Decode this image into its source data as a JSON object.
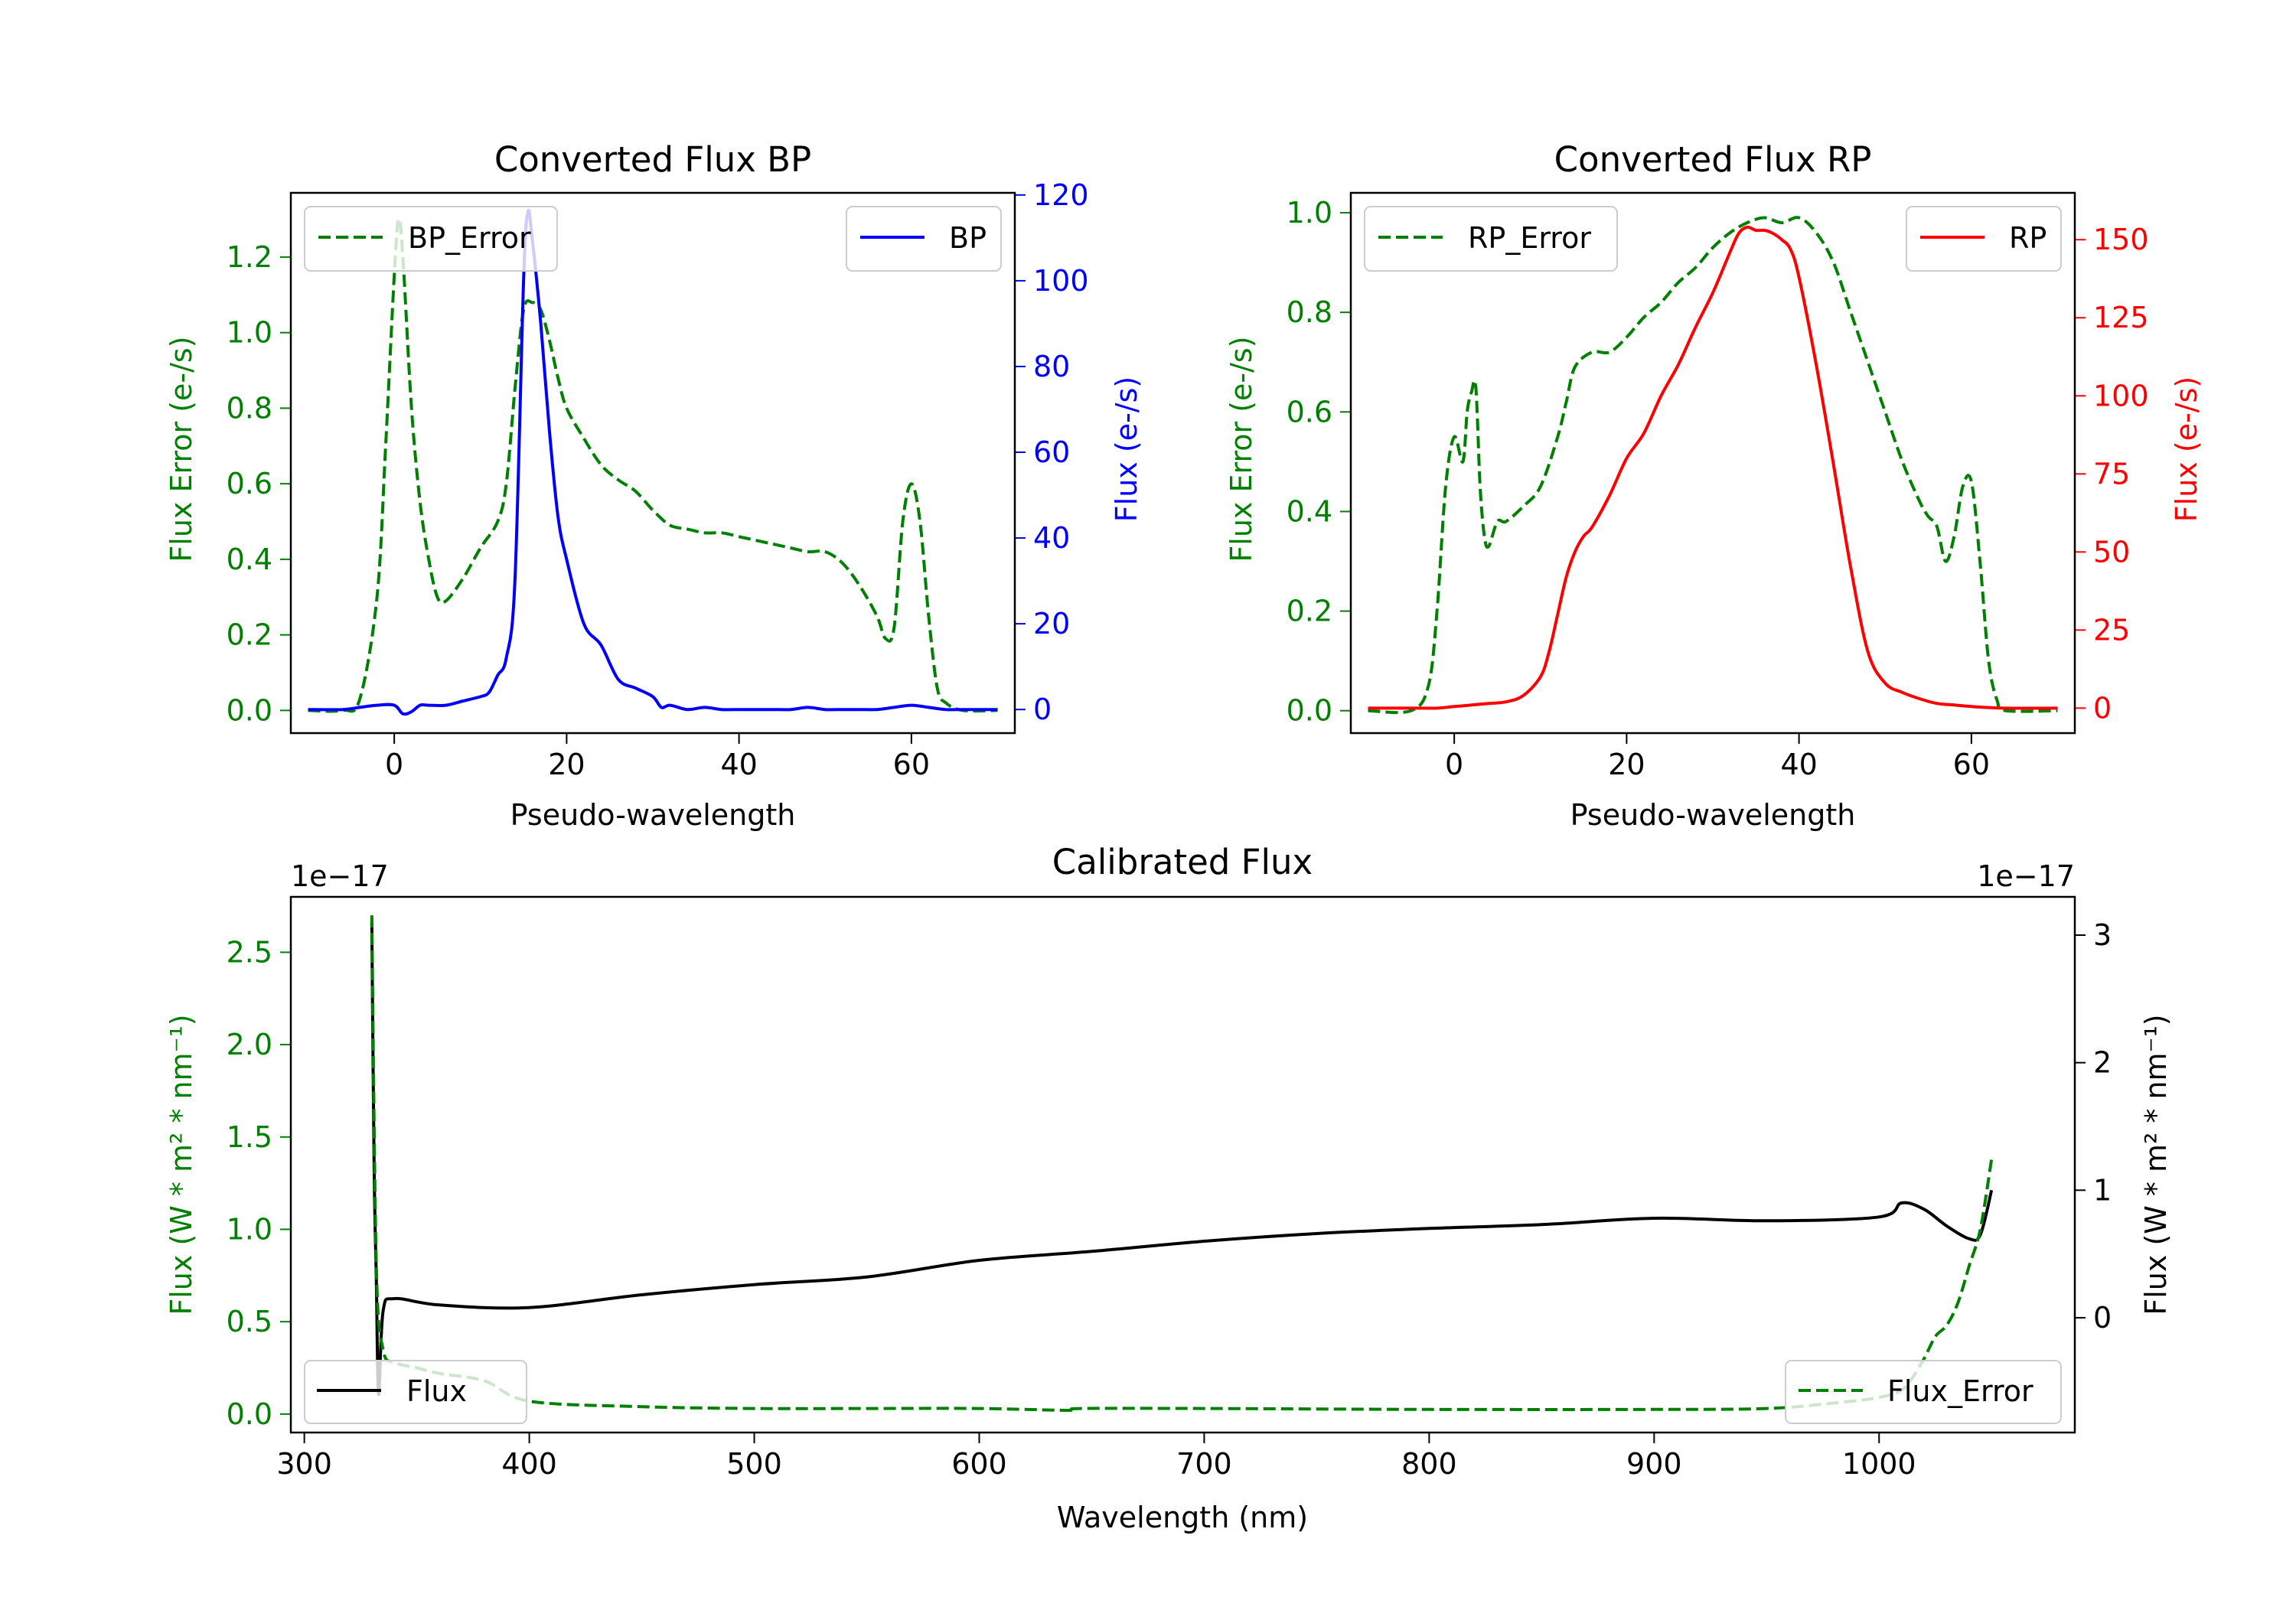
{
  "figure": {
    "colors": {
      "error": "#008000",
      "bp": "#0000ff",
      "rp": "#ff0000",
      "flux": "#000000",
      "axis": "#000000"
    }
  },
  "chart_data": [
    {
      "id": "bp",
      "type": "line",
      "title": "Converted Flux BP",
      "xlabel": "Pseudo-wavelength",
      "ylabel_left": "Flux Error (e-/s)",
      "ylabel_right": "Flux (e-/s)",
      "xlim": [
        -12,
        72
      ],
      "ylim_left": [
        -0.06,
        1.37
      ],
      "ylim_right": [
        -5.5,
        120.5
      ],
      "xticks": [
        "0",
        "20",
        "40",
        "60"
      ],
      "yticks_left": [
        "0.0",
        "0.2",
        "0.4",
        "0.6",
        "0.8",
        "1.0",
        "1.2"
      ],
      "yticks_right": [
        "0",
        "20",
        "40",
        "60",
        "80",
        "100",
        "120"
      ],
      "legend_left": {
        "label": "BP_Error",
        "placement": "upper left"
      },
      "legend_right": {
        "label": "BP",
        "placement": "upper right"
      },
      "series": [
        {
          "name": "BP_Error",
          "axis": "left",
          "style": "dashed",
          "color": "#008000",
          "x": [
            -10,
            -6,
            -4,
            -2,
            -1,
            0,
            0.5,
            1,
            2,
            3,
            4,
            5,
            6,
            8,
            10,
            12,
            13,
            14,
            15,
            16,
            17,
            18,
            19,
            20,
            22,
            24,
            26,
            28,
            30,
            32,
            34,
            36,
            38,
            40,
            42,
            44,
            46,
            48,
            50,
            52,
            54,
            56,
            57,
            58,
            59,
            60,
            61,
            62,
            63,
            64,
            66,
            70
          ],
          "y": [
            0,
            0,
            0.03,
            0.3,
            0.7,
            1.15,
            1.3,
            1.2,
            0.8,
            0.55,
            0.4,
            0.3,
            0.29,
            0.35,
            0.43,
            0.5,
            0.6,
            0.85,
            1.06,
            1.08,
            1.06,
            0.98,
            0.88,
            0.8,
            0.72,
            0.65,
            0.61,
            0.58,
            0.53,
            0.49,
            0.48,
            0.47,
            0.47,
            0.46,
            0.45,
            0.44,
            0.43,
            0.42,
            0.42,
            0.39,
            0.33,
            0.25,
            0.19,
            0.22,
            0.5,
            0.6,
            0.5,
            0.25,
            0.06,
            0.02,
            0,
            0
          ]
        },
        {
          "name": "BP",
          "axis": "right",
          "style": "solid",
          "color": "#0000ff",
          "x": [
            -10,
            -6,
            -4,
            -2,
            0,
            1,
            2,
            3,
            4,
            6,
            8,
            10,
            11,
            12,
            13,
            14,
            15,
            15.5,
            16,
            17,
            18,
            19,
            20,
            22,
            24,
            26,
            28,
            30,
            31,
            32,
            34,
            36,
            38,
            40,
            42,
            44,
            46,
            48,
            50,
            52,
            54,
            56,
            58,
            60,
            62,
            64,
            66,
            70
          ],
          "y": [
            0,
            0,
            0.5,
            1,
            1,
            -1,
            -0.5,
            1,
            1,
            1,
            2,
            3,
            4,
            8,
            12,
            30,
            100,
            116,
            110,
            90,
            65,
            45,
            35,
            20,
            15,
            7,
            5,
            3,
            0.5,
            1,
            0,
            0.5,
            0,
            0,
            0,
            0,
            0,
            0.5,
            0,
            0,
            0,
            0,
            0.5,
            1,
            0.5,
            0,
            0,
            0
          ]
        }
      ]
    },
    {
      "id": "rp",
      "type": "line",
      "title": "Converted Flux RP",
      "xlabel": "Pseudo-wavelength",
      "ylabel_left": "Flux Error (e-/s)",
      "ylabel_right": "Flux (e-/s)",
      "xlim": [
        -12,
        72
      ],
      "ylim_left": [
        -0.045,
        1.04
      ],
      "ylim_right": [
        -8,
        165
      ],
      "xticks": [
        "0",
        "20",
        "40",
        "60"
      ],
      "yticks_left": [
        "0.0",
        "0.2",
        "0.4",
        "0.6",
        "0.8",
        "1.0"
      ],
      "yticks_right": [
        "0",
        "25",
        "50",
        "75",
        "100",
        "125",
        "150"
      ],
      "legend_left": {
        "label": "RP_Error",
        "placement": "upper left"
      },
      "legend_right": {
        "label": "RP",
        "placement": "upper right"
      },
      "series": [
        {
          "name": "RP_Error",
          "axis": "left",
          "style": "dashed",
          "color": "#008000",
          "x": [
            -10,
            -5,
            -3,
            -2,
            -1,
            0,
            1,
            1.5,
            2,
            2.5,
            3,
            3.5,
            4,
            5,
            6,
            8,
            10,
            12,
            13,
            14,
            16,
            18,
            20,
            22,
            24,
            26,
            28,
            30,
            32,
            34,
            36,
            38,
            40,
            42,
            44,
            46,
            48,
            50,
            52,
            54,
            55,
            56,
            57,
            58,
            59,
            60,
            61,
            62,
            63,
            64,
            70
          ],
          "y": [
            0,
            0,
            0.05,
            0.2,
            0.45,
            0.55,
            0.5,
            0.6,
            0.64,
            0.65,
            0.45,
            0.35,
            0.33,
            0.38,
            0.38,
            0.41,
            0.45,
            0.55,
            0.62,
            0.69,
            0.72,
            0.72,
            0.75,
            0.79,
            0.82,
            0.86,
            0.89,
            0.93,
            0.96,
            0.98,
            0.99,
            0.98,
            0.99,
            0.96,
            0.9,
            0.8,
            0.7,
            0.6,
            0.5,
            0.42,
            0.39,
            0.37,
            0.3,
            0.35,
            0.45,
            0.46,
            0.3,
            0.1,
            0.02,
            0,
            0
          ]
        },
        {
          "name": "RP",
          "axis": "right",
          "style": "solid",
          "color": "#ff0000",
          "x": [
            -10,
            -4,
            -2,
            0,
            2,
            4,
            6,
            8,
            10,
            11,
            12,
            13,
            14,
            15,
            16,
            18,
            20,
            22,
            24,
            26,
            28,
            30,
            32,
            33,
            34,
            35,
            36,
            37,
            38,
            39,
            40,
            42,
            44,
            46,
            48,
            50,
            52,
            54,
            56,
            58,
            60,
            64,
            70
          ],
          "y": [
            0,
            0,
            0,
            0.5,
            1,
            1.5,
            2,
            4,
            10,
            18,
            30,
            42,
            50,
            55,
            58,
            68,
            80,
            88,
            100,
            110,
            122,
            133,
            146,
            152,
            154,
            153,
            153,
            152,
            150,
            147,
            138,
            110,
            78,
            45,
            18,
            8,
            5,
            3,
            1.5,
            1,
            0.5,
            0,
            0
          ]
        }
      ]
    },
    {
      "id": "cal",
      "type": "line",
      "title": "Calibrated Flux",
      "xlabel": "Wavelength (nm)",
      "ylabel_left": "Flux (W * m² * nm⁻¹)",
      "ylabel_right": "Flux (W * m² * nm⁻¹)",
      "offset_left": "1e−17",
      "offset_right": "1e−17",
      "xlim": [
        294,
        1087
      ],
      "ylim_left": [
        -0.1,
        2.8
      ],
      "ylim_right": [
        -0.9,
        3.3
      ],
      "xticks": [
        "300",
        "400",
        "500",
        "600",
        "700",
        "800",
        "900",
        "1000"
      ],
      "yticks_left": [
        "0.0",
        "0.5",
        "1.0",
        "1.5",
        "2.0",
        "2.5"
      ],
      "yticks_right": [
        "0",
        "1",
        "2",
        "3"
      ],
      "legend_left": {
        "label": "Flux",
        "placement": "lower left"
      },
      "legend_right": {
        "label": "Flux_Error",
        "placement": "lower right"
      },
      "series": [
        {
          "name": "Flux",
          "axis": "right",
          "style": "solid",
          "color": "#000000",
          "x": [
            330,
            331,
            332,
            333,
            335,
            340,
            360,
            400,
            450,
            500,
            550,
            600,
            650,
            700,
            750,
            800,
            850,
            900,
            950,
            1000,
            1010,
            1020,
            1030,
            1040,
            1045,
            1050
          ],
          "y": [
            3.1,
            1.2,
            0.3,
            -0.6,
            0.05,
            0.15,
            0.1,
            0.08,
            0.18,
            0.26,
            0.32,
            0.45,
            0.52,
            0.6,
            0.66,
            0.7,
            0.73,
            0.78,
            0.76,
            0.79,
            0.9,
            0.85,
            0.72,
            0.62,
            0.65,
            1.0
          ]
        },
        {
          "name": "Flux_Error",
          "axis": "left",
          "style": "dashed",
          "color": "#008000",
          "x": [
            330,
            332,
            335,
            340,
            350,
            360,
            380,
            400,
            450,
            500,
            550,
            600,
            640,
            645,
            700,
            800,
            900,
            950,
            980,
            1000,
            1010,
            1015,
            1020,
            1025,
            1030,
            1035,
            1040,
            1045,
            1050
          ],
          "y": [
            2.7,
            0.8,
            0.35,
            0.28,
            0.25,
            0.22,
            0.18,
            0.07,
            0.04,
            0.03,
            0.03,
            0.03,
            0.02,
            0.03,
            0.03,
            0.025,
            0.025,
            0.03,
            0.06,
            0.09,
            0.13,
            0.2,
            0.3,
            0.42,
            0.48,
            0.6,
            0.8,
            1.0,
            1.38
          ]
        }
      ]
    }
  ]
}
